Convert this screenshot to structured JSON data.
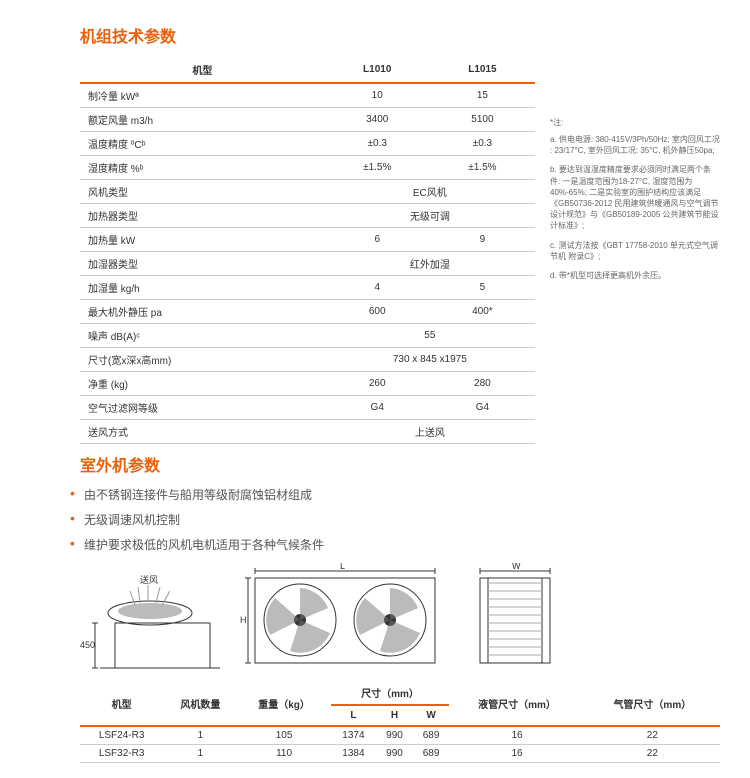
{
  "sections": {
    "unit_params_title": "机组技术参数",
    "outdoor_title": "室外机参数"
  },
  "spec_table": {
    "headers": [
      "机型",
      "L1010",
      "L1015"
    ],
    "rows": [
      [
        "制冷量 kWª",
        "10",
        "15"
      ],
      [
        "额定风量 m3/h",
        "3400",
        "5100"
      ],
      [
        "温度精度 ºCᵇ",
        "±0.3",
        "±0.3"
      ],
      [
        "湿度精度 %ᵇ",
        "±1.5%",
        "±1.5%"
      ],
      [
        "风机类型",
        "EC风机",
        ""
      ],
      [
        "加热器类型",
        "无级可调",
        ""
      ],
      [
        "加热量 kW",
        "6",
        "9"
      ],
      [
        "加湿器类型",
        "红外加湿",
        ""
      ],
      [
        "加湿量 kg/h",
        "4",
        "5"
      ],
      [
        "最大机外静压 pa",
        "600",
        "400*"
      ],
      [
        "噪声 dB(A)ᶜ",
        "55",
        ""
      ],
      [
        "尺寸(宽x深x高mm)",
        "730 x 845 x1975",
        ""
      ],
      [
        "净重 (kg)",
        "260",
        "280"
      ],
      [
        "空气过滤网等级",
        "G4",
        "G4"
      ],
      [
        "送风方式",
        "上送风",
        ""
      ]
    ],
    "span_rows": [
      4,
      5,
      7,
      10,
      11,
      14
    ]
  },
  "notes": {
    "label": "*注:",
    "items": [
      "a. 供电电源: 380-415V/3Ph/50Hz; 室内回风工况 : 23/17°C, 室外回风工况: 35°C, 机外静压50pa;",
      "b. 要达到温湿度精度要求必须同时满足两个条件: 一是温度范围为18-27°C, 湿度范围为40%-65%; 二是实验室的围护结构应该满足《GB50736-2012 民用建筑供暖通风与空气调节设计规范》与《GB50189-2005 公共建筑节能设计标准》;",
      "c. 测试方法按《GBT 17758-2010 单元式空气调节机 附录C》;",
      "d. 带*机型可选择更高机外余压。"
    ]
  },
  "bullets": [
    "由不锈钢连接件与船用等级耐腐蚀铝材组成",
    "无级调速风机控制",
    "维护要求极低的风机电机适用于各种气候条件"
  ],
  "diagram": {
    "airflow_label": "送风",
    "height_label": "450",
    "L": "L",
    "H": "H",
    "W": "W"
  },
  "outdoor_table": {
    "group_headers": [
      "机型",
      "风机数量",
      "重量（kg）",
      "尺寸（mm）",
      "液管尺寸（mm）",
      "气管尺寸（mm）"
    ],
    "sub_headers": [
      "L",
      "H",
      "W"
    ],
    "rows": [
      [
        "LSF24-R3",
        "1",
        "105",
        "1374",
        "990",
        "689",
        "16",
        "22"
      ],
      [
        "LSF32-R3",
        "1",
        "110",
        "1384",
        "990",
        "689",
        "16",
        "22"
      ]
    ]
  }
}
